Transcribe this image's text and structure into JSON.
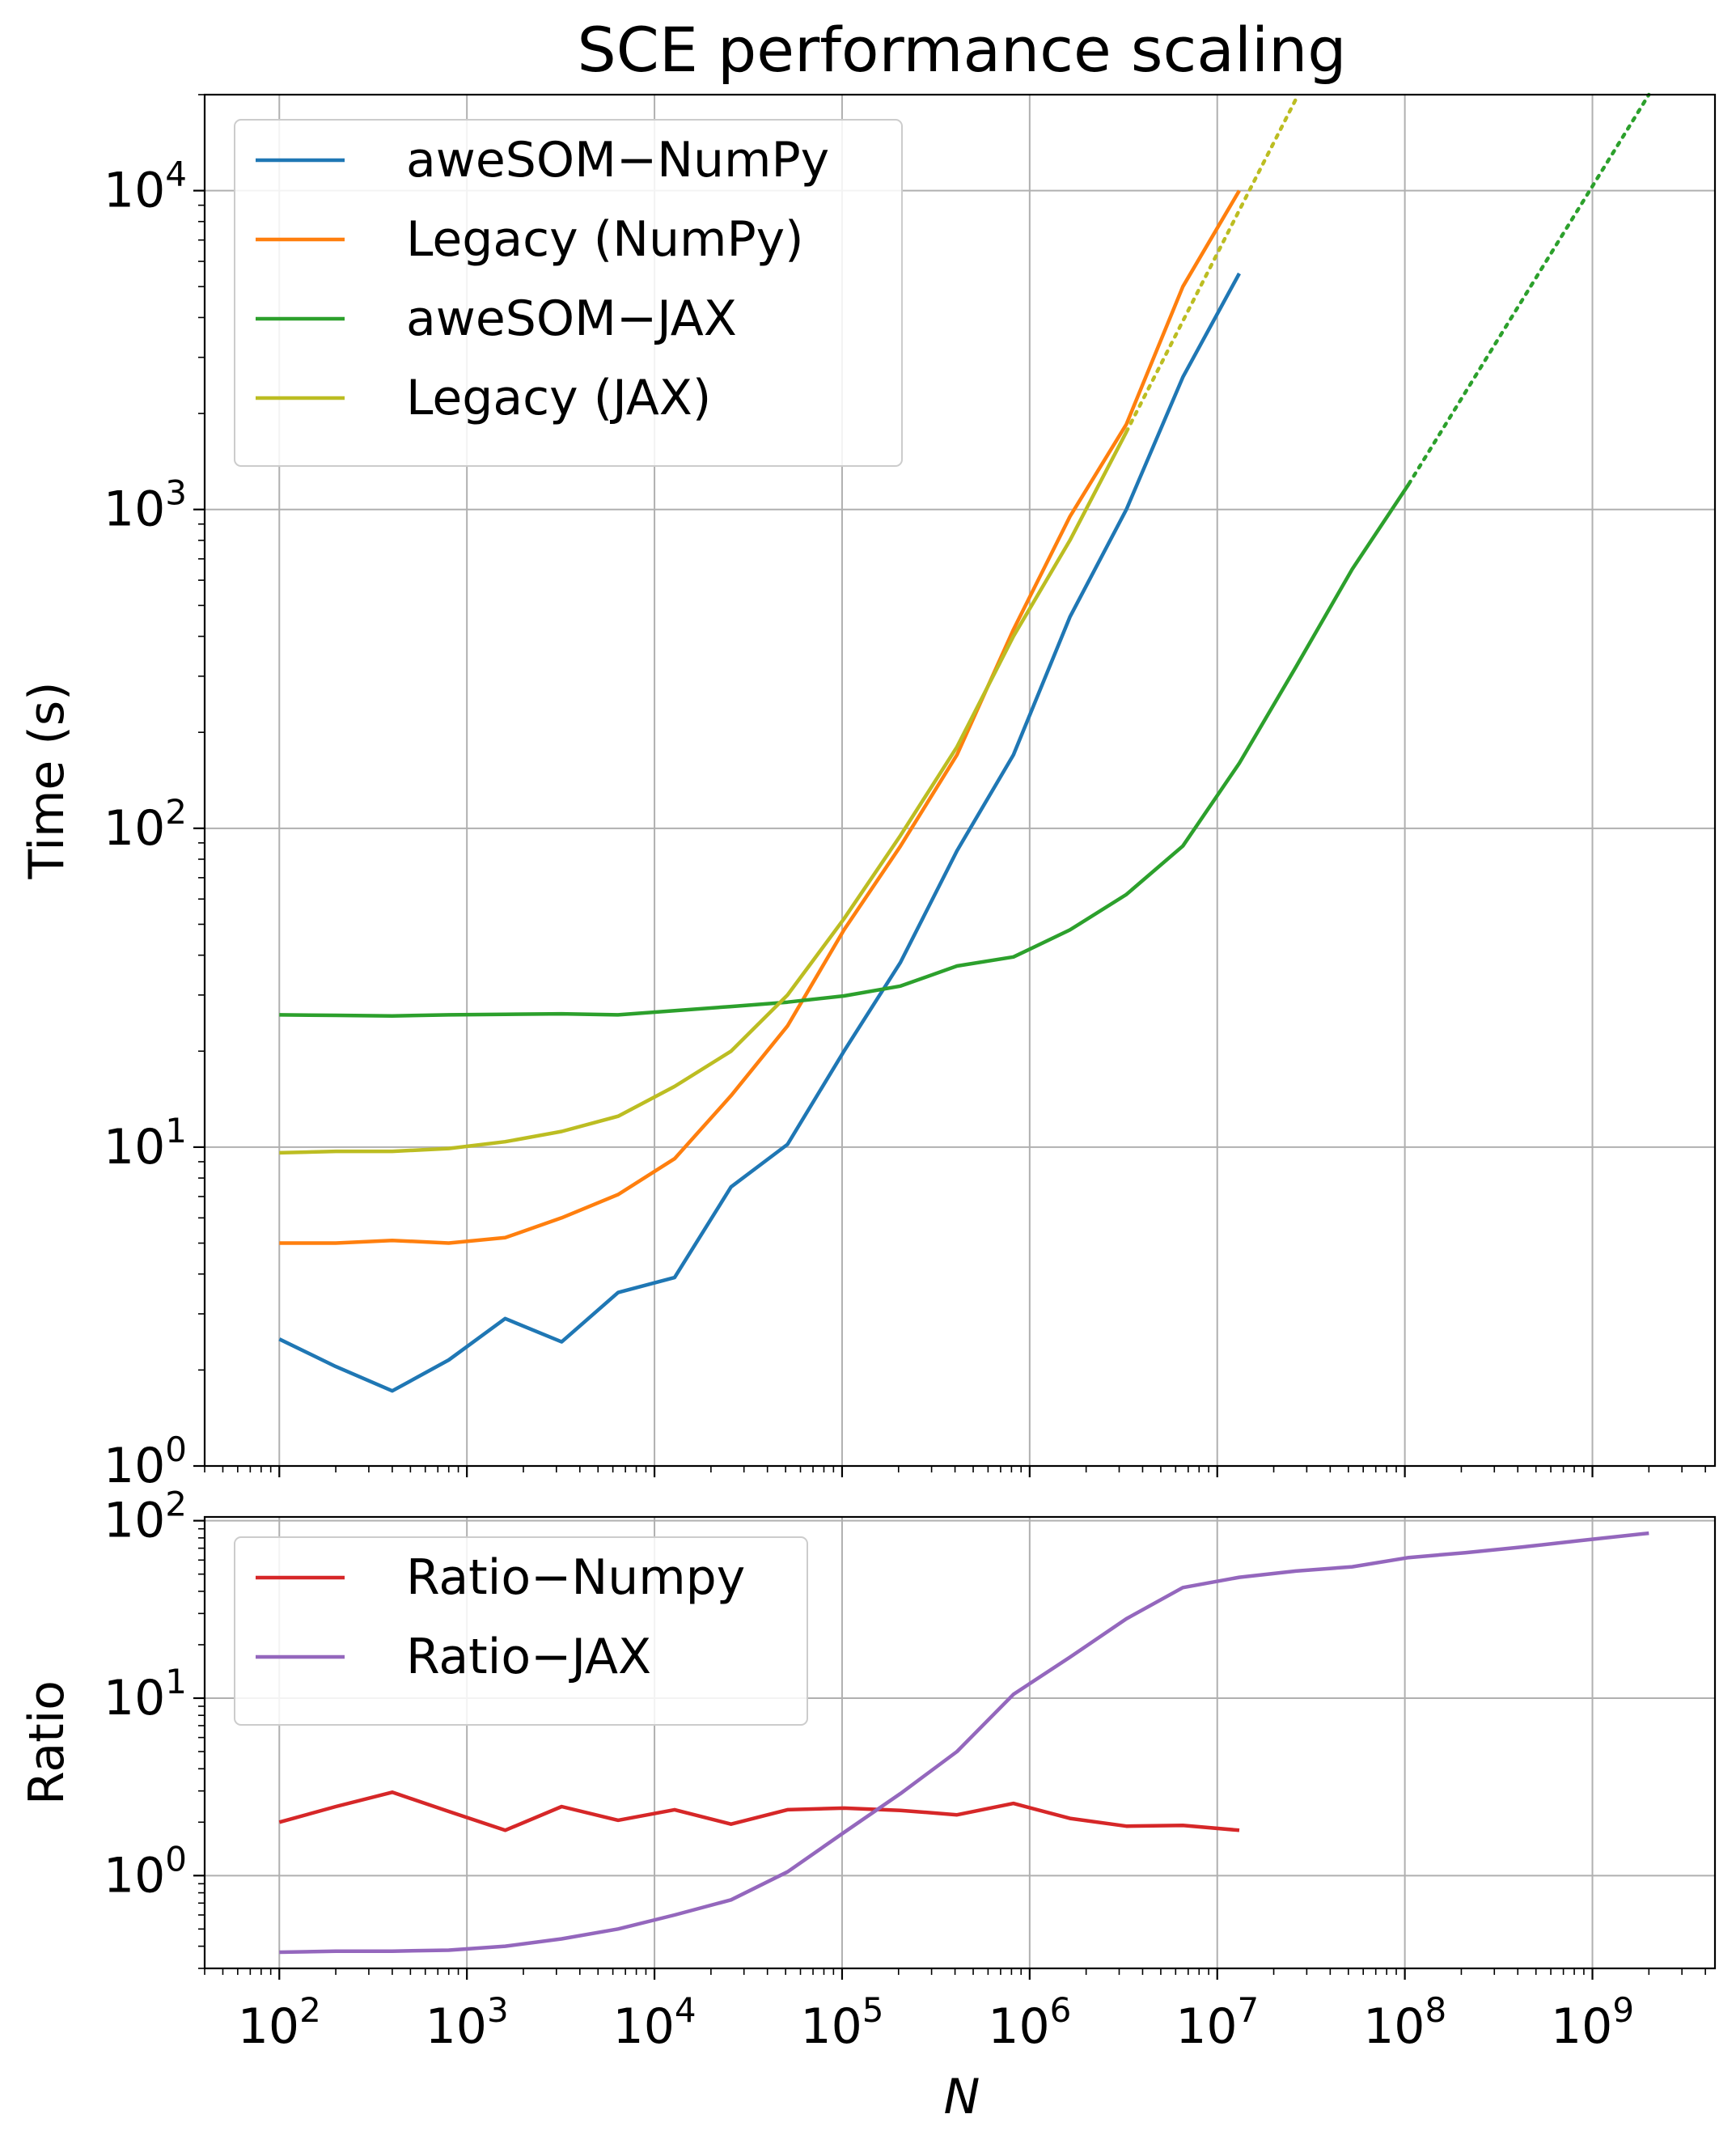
{
  "chart_data": [
    {
      "type": "line",
      "title": "SCE performance scaling",
      "xlabel": "",
      "ylabel": "Time (s)",
      "xscale": "log",
      "yscale": "log",
      "xlim": [
        40,
        4500000000
      ],
      "ylim": [
        1,
        20000
      ],
      "grid": true,
      "legend": "top-left",
      "xticks_major": [
        100,
        1000,
        10000,
        100000,
        1000000,
        10000000,
        100000000,
        1000000000
      ],
      "yticks": [
        {
          "value": 1,
          "base": "10",
          "exp": "0"
        },
        {
          "value": 10,
          "base": "10",
          "exp": "1"
        },
        {
          "value": 100,
          "base": "10",
          "exp": "2"
        },
        {
          "value": 1000,
          "base": "10",
          "exp": "3"
        },
        {
          "value": 10000,
          "base": "10",
          "exp": "4"
        }
      ],
      "series": [
        {
          "name": "aweSOM−NumPy",
          "color": "#1f77b4",
          "x": [
            100,
            200,
            400,
            800,
            1600,
            3200,
            6400,
            12800,
            25600,
            51200,
            102400,
            204800,
            409600,
            819200,
            1638400,
            3276800,
            6553600,
            13107200
          ],
          "y": [
            2.5,
            2.05,
            1.72,
            2.15,
            2.9,
            2.45,
            3.5,
            3.9,
            7.5,
            10.2,
            20,
            38,
            85,
            170,
            460,
            1000,
            2600,
            5500
          ]
        },
        {
          "name": "Legacy (NumPy)",
          "color": "#ff7f0e",
          "x": [
            100,
            200,
            400,
            800,
            1600,
            3200,
            6400,
            12800,
            25600,
            51200,
            102400,
            204800,
            409600,
            819200,
            1638400,
            3276800,
            6553600,
            13107200
          ],
          "y": [
            5.0,
            5.0,
            5.1,
            5.0,
            5.2,
            6.0,
            7.1,
            9.2,
            14.5,
            24,
            48,
            88,
            170,
            420,
            950,
            1850,
            5000,
            10000
          ]
        },
        {
          "name": "aweSOM−JAX",
          "color": "#2ca02c",
          "x": [
            100,
            200,
            400,
            800,
            1600,
            3200,
            6400,
            12800,
            25600,
            51200,
            102400,
            204800,
            409600,
            819200,
            1638400,
            3276800,
            6553600,
            13107200,
            26214400,
            52428800,
            104857600
          ],
          "y": [
            26,
            25.9,
            25.8,
            26,
            26.1,
            26.2,
            26,
            26.8,
            27.6,
            28.5,
            29.8,
            32,
            37,
            39.5,
            48,
            62,
            88,
            160,
            320,
            650,
            1200
          ]
        },
        {
          "name": "Legacy (JAX)",
          "color": "#bcbd22",
          "x": [
            100,
            200,
            400,
            800,
            1600,
            3200,
            6400,
            12800,
            25600,
            51200,
            102400,
            204800,
            409600,
            819200,
            1638400,
            3276800
          ],
          "y": [
            9.6,
            9.7,
            9.7,
            9.9,
            10.4,
            11.2,
            12.5,
            15.5,
            20,
            30,
            52,
            95,
            180,
            400,
            800,
            1750
          ]
        }
      ],
      "extrapolations": [
        {
          "color": "#bcbd22",
          "x": [
            3276800,
            27000000
          ],
          "y": [
            1750,
            20000
          ]
        },
        {
          "color": "#2ca02c",
          "x": [
            104857600,
            2000000000
          ],
          "y": [
            1200,
            20000
          ]
        }
      ]
    },
    {
      "type": "line",
      "title": "",
      "xlabel": "N",
      "ylabel": "Ratio",
      "xscale": "log",
      "yscale": "log",
      "xlim": [
        40,
        4500000000
      ],
      "ylim": [
        0.3,
        105
      ],
      "grid": true,
      "legend": "top-left",
      "xticks": [
        {
          "value": 100,
          "base": "10",
          "exp": "2"
        },
        {
          "value": 1000,
          "base": "10",
          "exp": "3"
        },
        {
          "value": 10000,
          "base": "10",
          "exp": "4"
        },
        {
          "value": 100000,
          "base": "10",
          "exp": "5"
        },
        {
          "value": 1000000,
          "base": "10",
          "exp": "6"
        },
        {
          "value": 10000000,
          "base": "10",
          "exp": "7"
        },
        {
          "value": 100000000,
          "base": "10",
          "exp": "8"
        },
        {
          "value": 1000000000,
          "base": "10",
          "exp": "9"
        }
      ],
      "yticks": [
        {
          "value": 1,
          "base": "10",
          "exp": "0"
        },
        {
          "value": 10,
          "base": "10",
          "exp": "1"
        },
        {
          "value": 100,
          "base": "10",
          "exp": "2"
        }
      ],
      "series": [
        {
          "name": "Ratio−Numpy",
          "color": "#d62728",
          "x": [
            100,
            200,
            400,
            800,
            1600,
            3200,
            6400,
            12800,
            25600,
            51200,
            102400,
            204800,
            409600,
            819200,
            1638400,
            3276800,
            6553600,
            13107200
          ],
          "y": [
            2.0,
            2.45,
            2.95,
            2.3,
            1.8,
            2.45,
            2.05,
            2.35,
            1.95,
            2.35,
            2.4,
            2.33,
            2.2,
            2.55,
            2.1,
            1.9,
            1.92,
            1.8
          ]
        },
        {
          "name": "Ratio−JAX",
          "color": "#9467bd",
          "x": [
            100,
            200,
            400,
            800,
            1600,
            3200,
            6400,
            12800,
            25600,
            51200,
            102400,
            204800,
            409600,
            819200,
            1638400,
            3276800,
            6553600,
            13107200,
            26214400,
            52428800,
            104857600,
            209715200,
            419430400,
            838860800,
            2000000000
          ],
          "y": [
            0.37,
            0.375,
            0.375,
            0.38,
            0.4,
            0.44,
            0.5,
            0.6,
            0.73,
            1.05,
            1.75,
            2.9,
            5.0,
            10.5,
            17,
            28,
            42,
            48,
            52,
            55,
            62,
            66,
            71,
            77,
            85
          ]
        }
      ]
    }
  ]
}
